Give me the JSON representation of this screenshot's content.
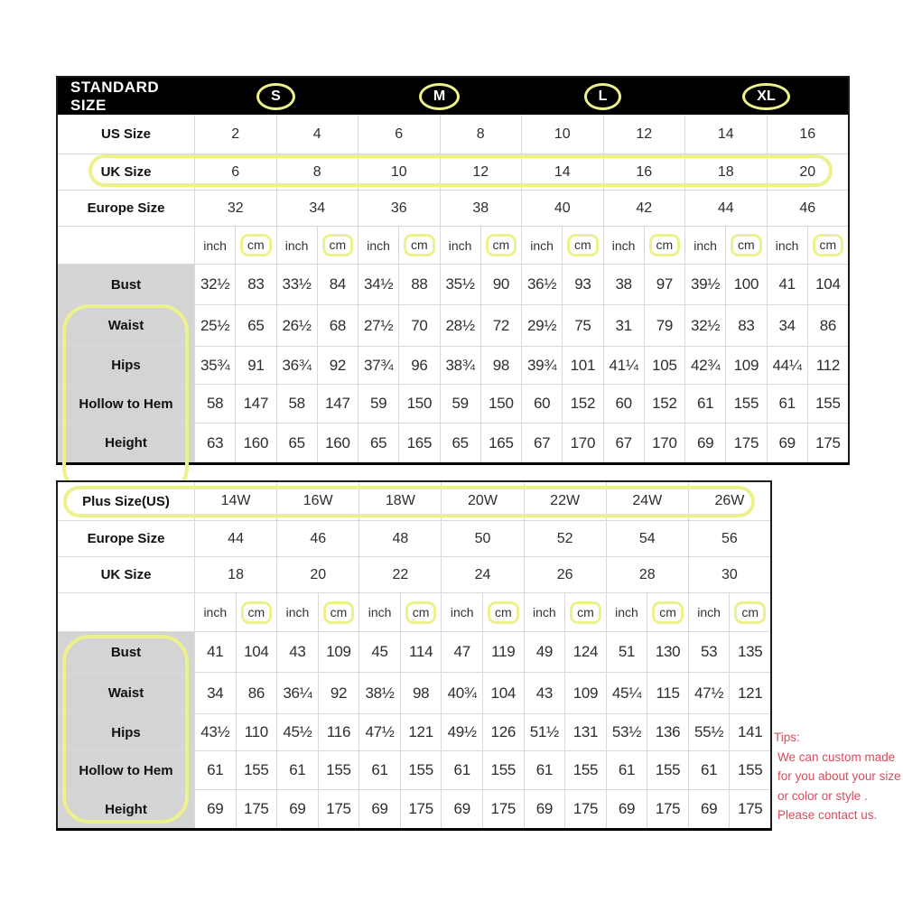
{
  "colors": {
    "highlight_yellow": "#edf18b",
    "header_bg": "#000000",
    "header_text": "#ffffff",
    "label_gray_bg": "#d4d4d4",
    "grid_line": "#d9d9d9",
    "tips_red": "#d94b5e"
  },
  "standard_table": {
    "header_title": "STANDARD SIZE",
    "size_groups": [
      "S",
      "M",
      "L",
      "XL"
    ],
    "size_rows": [
      {
        "label": "US Size",
        "highlighted": true,
        "values": [
          "2",
          "4",
          "6",
          "8",
          "10",
          "12",
          "14",
          "16"
        ]
      },
      {
        "label": "UK Size",
        "highlighted": false,
        "values": [
          "6",
          "8",
          "10",
          "12",
          "14",
          "16",
          "18",
          "20"
        ]
      },
      {
        "label": "Europe Size",
        "highlighted": false,
        "values": [
          "32",
          "34",
          "36",
          "38",
          "40",
          "42",
          "44",
          "46"
        ]
      }
    ],
    "unit_row": {
      "inch_label": "inch",
      "cm_label": "cm",
      "pair_count": 8
    },
    "measure_rows": [
      {
        "label": "Bust",
        "values": [
          "32½",
          "83",
          "33½",
          "84",
          "34½",
          "88",
          "35½",
          "90",
          "36½",
          "93",
          "38",
          "97",
          "39½",
          "100",
          "41",
          "104"
        ]
      },
      {
        "label": "Waist",
        "values": [
          "25½",
          "65",
          "26½",
          "68",
          "27½",
          "70",
          "28½",
          "72",
          "29½",
          "75",
          "31",
          "79",
          "32½",
          "83",
          "34",
          "86"
        ]
      },
      {
        "label": "Hips",
        "values": [
          "35¾",
          "91",
          "36¾",
          "92",
          "37¾",
          "96",
          "38¾",
          "98",
          "39¾",
          "101",
          "41¼",
          "105",
          "42¾",
          "109",
          "44¼",
          "112"
        ]
      },
      {
        "label": "Hollow to Hem",
        "values": [
          "58",
          "147",
          "58",
          "147",
          "59",
          "150",
          "59",
          "150",
          "60",
          "152",
          "60",
          "152",
          "61",
          "155",
          "61",
          "155"
        ]
      },
      {
        "label": "Height",
        "values": [
          "63",
          "160",
          "65",
          "160",
          "65",
          "165",
          "65",
          "165",
          "67",
          "170",
          "67",
          "170",
          "69",
          "175",
          "69",
          "175"
        ]
      }
    ]
  },
  "plus_table": {
    "size_rows": [
      {
        "label": "Plus Size(US)",
        "highlighted": true,
        "values": [
          "14W",
          "16W",
          "18W",
          "20W",
          "22W",
          "24W",
          "26W"
        ]
      },
      {
        "label": "Europe Size",
        "highlighted": false,
        "values": [
          "44",
          "46",
          "48",
          "50",
          "52",
          "54",
          "56"
        ]
      },
      {
        "label": "UK Size",
        "highlighted": false,
        "values": [
          "18",
          "20",
          "22",
          "24",
          "26",
          "28",
          "30"
        ]
      }
    ],
    "unit_row": {
      "inch_label": "inch",
      "cm_label": "cm",
      "pair_count": 7
    },
    "measure_rows": [
      {
        "label": "Bust",
        "values": [
          "41",
          "104",
          "43",
          "109",
          "45",
          "114",
          "47",
          "119",
          "49",
          "124",
          "51",
          "130",
          "53",
          "135"
        ]
      },
      {
        "label": "Waist",
        "values": [
          "34",
          "86",
          "36¼",
          "92",
          "38½",
          "98",
          "40¾",
          "104",
          "43",
          "109",
          "45¼",
          "115",
          "47½",
          "121"
        ]
      },
      {
        "label": "Hips",
        "values": [
          "43½",
          "110",
          "45½",
          "116",
          "47½",
          "121",
          "49½",
          "126",
          "51½",
          "131",
          "53½",
          "136",
          "55½",
          "141"
        ]
      },
      {
        "label": "Hollow to Hem",
        "values": [
          "61",
          "155",
          "61",
          "155",
          "61",
          "155",
          "61",
          "155",
          "61",
          "155",
          "61",
          "155",
          "61",
          "155"
        ]
      },
      {
        "label": "Height",
        "values": [
          "69",
          "175",
          "69",
          "175",
          "69",
          "175",
          "69",
          "175",
          "69",
          "175",
          "69",
          "175",
          "69",
          "175"
        ]
      }
    ]
  },
  "tips": {
    "title": "Tips:",
    "lines": [
      "We can custom made",
      "for you about your size",
      "or color or style .",
      "Please contact us."
    ]
  }
}
